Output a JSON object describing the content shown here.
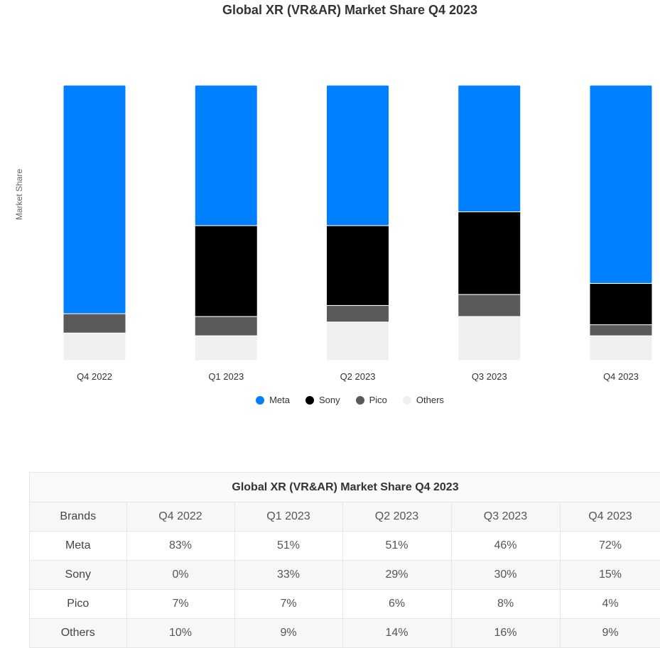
{
  "chart_data": {
    "type": "bar",
    "stacked": true,
    "title": "Global XR (VR&AR) Market Share Q4 2023",
    "ylabel": "Market Share",
    "categories": [
      "Q4 2022",
      "Q1 2023",
      "Q2 2023",
      "Q3 2023",
      "Q4 2023"
    ],
    "series": [
      {
        "name": "Meta",
        "color": "#0080ff",
        "values": [
          83,
          51,
          51,
          46,
          72
        ]
      },
      {
        "name": "Sony",
        "color": "#000000",
        "values": [
          0,
          33,
          29,
          30,
          15
        ]
      },
      {
        "name": "Pico",
        "color": "#5a5a5a",
        "values": [
          7,
          7,
          6,
          8,
          4
        ]
      },
      {
        "name": "Others",
        "color": "#f0f0f0",
        "values": [
          10,
          9,
          14,
          16,
          9
        ]
      }
    ],
    "ylim": [
      0,
      100
    ],
    "grid": false,
    "legend_position": "bottom"
  },
  "table": {
    "title": "Global XR (VR&AR) Market Share Q4 2023",
    "headers": [
      "Brands",
      "Q4 2022",
      "Q1 2023",
      "Q2 2023",
      "Q3 2023",
      "Q4 2023"
    ],
    "rows": [
      [
        "Meta",
        "83%",
        "51%",
        "51%",
        "46%",
        "72%"
      ],
      [
        "Sony",
        "0%",
        "33%",
        "29%",
        "30%",
        "15%"
      ],
      [
        "Pico",
        "7%",
        "7%",
        "6%",
        "8%",
        "4%"
      ],
      [
        "Others",
        "10%",
        "9%",
        "14%",
        "16%",
        "9%"
      ]
    ]
  }
}
